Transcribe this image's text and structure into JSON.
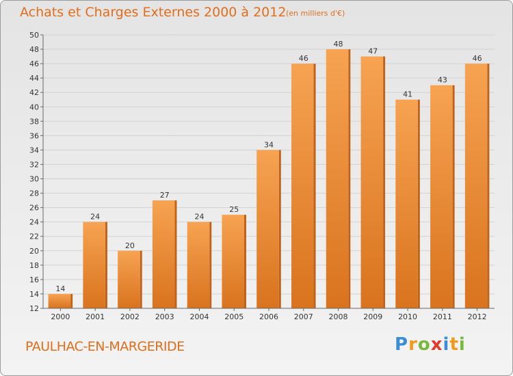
{
  "header": {
    "title": "Achats et Charges Externes 2000 à 2012",
    "subtitle": "(en milliers d'€)"
  },
  "footer": {
    "commune": "PAULHAC-EN-MARGERIDE",
    "logo_letters": [
      "P",
      "r",
      "o",
      "x",
      "i",
      "t",
      "i"
    ]
  },
  "colors": {
    "bar_light": "#f6a352",
    "bar_dark": "#d9731e",
    "bar_side": "#c0621a",
    "text": "#e26d1b"
  },
  "chart_data": {
    "type": "bar",
    "categories": [
      "2000",
      "2001",
      "2002",
      "2003",
      "2004",
      "2005",
      "2006",
      "2007",
      "2008",
      "2009",
      "2010",
      "2011",
      "2012"
    ],
    "values": [
      14,
      24,
      20,
      27,
      24,
      25,
      34,
      46,
      48,
      47,
      41,
      43,
      46
    ],
    "yticks": [
      12,
      14,
      16,
      18,
      20,
      22,
      24,
      26,
      28,
      30,
      32,
      34,
      36,
      38,
      40,
      42,
      44,
      46,
      48,
      50
    ],
    "ylim": [
      12,
      50
    ],
    "grid": true,
    "title": "Achats et Charges Externes 2000 à 2012",
    "subtitle": "(en milliers d'€)"
  }
}
